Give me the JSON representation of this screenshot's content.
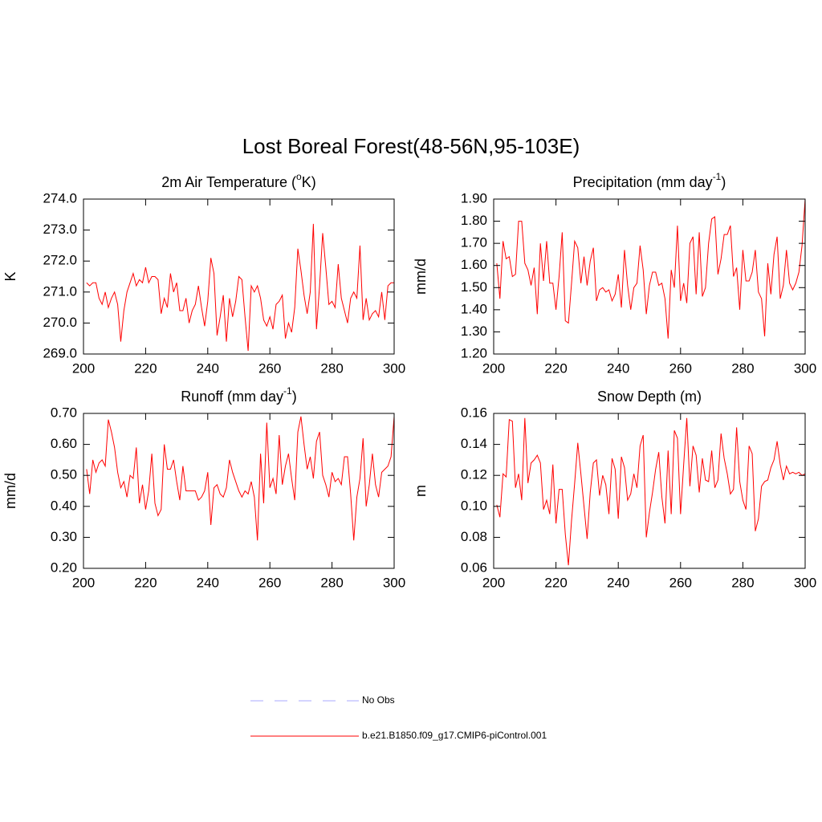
{
  "title": "Lost Boreal Forest(48-56N,95-103E)",
  "legend": [
    {
      "name": "No Obs",
      "color": "#aaaaff",
      "dash": true
    },
    {
      "name": "b.e21.B1850.f09_g17.CMIP6-piControl.001",
      "color": "#ff0000",
      "dash": false
    }
  ],
  "chart_data": [
    {
      "type": "line",
      "title": [
        "2m Air Temperature (",
        "o",
        "K)"
      ],
      "y_label": "K",
      "color": "#ff0000",
      "xlim": [
        200,
        300
      ],
      "xticks": [
        200,
        220,
        240,
        260,
        280,
        300
      ],
      "ylim": [
        269,
        274
      ],
      "yticks": [
        {
          "value": 269,
          "label": "269.0"
        },
        {
          "value": 270,
          "label": "270.0"
        },
        {
          "value": 271,
          "label": "271.0"
        },
        {
          "value": 272,
          "label": "272.0"
        },
        {
          "value": 273,
          "label": "273.0"
        },
        {
          "value": 274,
          "label": "274.0"
        }
      ],
      "x": [
        201,
        202,
        203,
        204,
        205,
        206,
        207,
        208,
        209,
        210,
        211,
        212,
        213,
        214,
        215,
        216,
        217,
        218,
        219,
        220,
        221,
        222,
        223,
        224,
        225,
        226,
        227,
        228,
        229,
        230,
        231,
        232,
        233,
        234,
        235,
        236,
        237,
        238,
        239,
        240,
        241,
        242,
        243,
        244,
        245,
        246,
        247,
        248,
        249,
        250,
        251,
        252,
        253,
        254,
        255,
        256,
        257,
        258,
        259,
        260,
        261,
        262,
        263,
        264,
        265,
        266,
        267,
        268,
        269,
        270,
        271,
        272,
        273,
        274,
        275,
        276,
        277,
        278,
        279,
        280,
        281,
        282,
        283,
        284,
        285,
        286,
        287,
        288,
        289,
        290,
        291,
        292,
        293,
        294,
        295,
        296,
        297,
        298,
        299,
        300
      ],
      "values": [
        271.3,
        271.2,
        271.3,
        271.3,
        270.8,
        270.6,
        271.0,
        270.5,
        270.8,
        271.0,
        270.6,
        269.4,
        270.4,
        271.0,
        271.3,
        271.6,
        271.2,
        271.4,
        271.3,
        271.8,
        271.3,
        271.5,
        271.5,
        271.4,
        270.3,
        270.8,
        270.5,
        271.6,
        271.0,
        271.3,
        270.4,
        270.4,
        270.8,
        270.0,
        270.4,
        270.6,
        271.2,
        270.5,
        269.9,
        270.7,
        272.1,
        271.6,
        269.6,
        270.2,
        270.9,
        269.4,
        270.8,
        270.2,
        270.7,
        271.5,
        271.4,
        270.2,
        269.1,
        271.2,
        271.0,
        271.2,
        270.8,
        270.1,
        269.9,
        270.2,
        269.8,
        270.6,
        270.7,
        270.9,
        269.5,
        270.0,
        269.7,
        270.5,
        272.4,
        271.7,
        270.9,
        270.3,
        271.0,
        273.2,
        269.8,
        271.2,
        272.9,
        271.8,
        270.6,
        270.7,
        270.5,
        271.9,
        270.8,
        270.4,
        270.0,
        270.8,
        271.0,
        270.8,
        272.5,
        270.1,
        270.8,
        270.1,
        270.3,
        270.4,
        270.2,
        271.0,
        270.1,
        271.2,
        271.3,
        271.3
      ]
    },
    {
      "type": "line",
      "title": [
        "Precipitation (mm day",
        "-1",
        ")"
      ],
      "y_label": "mm/d",
      "color": "#ff0000",
      "xlim": [
        200,
        300
      ],
      "xticks": [
        200,
        220,
        240,
        260,
        280,
        300
      ],
      "ylim": [
        1.2,
        1.9
      ],
      "yticks": [
        {
          "value": 1.2,
          "label": "1.20"
        },
        {
          "value": 1.3,
          "label": "1.30"
        },
        {
          "value": 1.4,
          "label": "1.40"
        },
        {
          "value": 1.5,
          "label": "1.50"
        },
        {
          "value": 1.6,
          "label": "1.60"
        },
        {
          "value": 1.7,
          "label": "1.70"
        },
        {
          "value": 1.8,
          "label": "1.80"
        },
        {
          "value": 1.9,
          "label": "1.90"
        }
      ],
      "x": [
        201,
        202,
        203,
        204,
        205,
        206,
        207,
        208,
        209,
        210,
        211,
        212,
        213,
        214,
        215,
        216,
        217,
        218,
        219,
        220,
        221,
        222,
        223,
        224,
        225,
        226,
        227,
        228,
        229,
        230,
        231,
        232,
        233,
        234,
        235,
        236,
        237,
        238,
        239,
        240,
        241,
        242,
        243,
        244,
        245,
        246,
        247,
        248,
        249,
        250,
        251,
        252,
        253,
        254,
        255,
        256,
        257,
        258,
        259,
        260,
        261,
        262,
        263,
        264,
        265,
        266,
        267,
        268,
        269,
        270,
        271,
        272,
        273,
        274,
        275,
        276,
        277,
        278,
        279,
        280,
        281,
        282,
        283,
        284,
        285,
        286,
        287,
        288,
        289,
        290,
        291,
        292,
        293,
        294,
        295,
        296,
        297,
        298,
        299,
        300
      ],
      "values": [
        1.61,
        1.45,
        1.71,
        1.63,
        1.64,
        1.55,
        1.56,
        1.8,
        1.8,
        1.61,
        1.58,
        1.51,
        1.59,
        1.38,
        1.7,
        1.53,
        1.71,
        1.52,
        1.52,
        1.4,
        1.55,
        1.75,
        1.35,
        1.34,
        1.52,
        1.71,
        1.68,
        1.52,
        1.64,
        1.51,
        1.62,
        1.68,
        1.44,
        1.49,
        1.5,
        1.48,
        1.49,
        1.44,
        1.47,
        1.56,
        1.41,
        1.67,
        1.51,
        1.4,
        1.5,
        1.52,
        1.69,
        1.58,
        1.38,
        1.51,
        1.57,
        1.57,
        1.51,
        1.52,
        1.45,
        1.27,
        1.58,
        1.5,
        1.78,
        1.44,
        1.52,
        1.43,
        1.7,
        1.73,
        1.47,
        1.75,
        1.46,
        1.5,
        1.7,
        1.81,
        1.82,
        1.56,
        1.63,
        1.74,
        1.74,
        1.78,
        1.55,
        1.59,
        1.4,
        1.67,
        1.53,
        1.53,
        1.57,
        1.67,
        1.48,
        1.45,
        1.28,
        1.61,
        1.47,
        1.65,
        1.73,
        1.45,
        1.51,
        1.67,
        1.52,
        1.49,
        1.52,
        1.57,
        1.69,
        1.9
      ]
    },
    {
      "type": "line",
      "title": [
        "Runoff (mm day",
        "-1",
        ")"
      ],
      "y_label": "mm/d",
      "color": "#ff0000",
      "xlim": [
        200,
        300
      ],
      "xticks": [
        200,
        220,
        240,
        260,
        280,
        300
      ],
      "ylim": [
        0.2,
        0.7
      ],
      "yticks": [
        {
          "value": 0.2,
          "label": "0.20"
        },
        {
          "value": 0.3,
          "label": "0.30"
        },
        {
          "value": 0.4,
          "label": "0.40"
        },
        {
          "value": 0.5,
          "label": "0.50"
        },
        {
          "value": 0.6,
          "label": "0.60"
        },
        {
          "value": 0.7,
          "label": "0.70"
        }
      ],
      "x": [
        201,
        202,
        203,
        204,
        205,
        206,
        207,
        208,
        209,
        210,
        211,
        212,
        213,
        214,
        215,
        216,
        217,
        218,
        219,
        220,
        221,
        222,
        223,
        224,
        225,
        226,
        227,
        228,
        229,
        230,
        231,
        232,
        233,
        234,
        235,
        236,
        237,
        238,
        239,
        240,
        241,
        242,
        243,
        244,
        245,
        246,
        247,
        248,
        249,
        250,
        251,
        252,
        253,
        254,
        255,
        256,
        257,
        258,
        259,
        260,
        261,
        262,
        263,
        264,
        265,
        266,
        267,
        268,
        269,
        270,
        271,
        272,
        273,
        274,
        275,
        276,
        277,
        278,
        279,
        280,
        281,
        282,
        283,
        284,
        285,
        286,
        287,
        288,
        289,
        290,
        291,
        292,
        293,
        294,
        295,
        296,
        297,
        298,
        299,
        300
      ],
      "values": [
        0.52,
        0.44,
        0.55,
        0.51,
        0.54,
        0.55,
        0.53,
        0.68,
        0.64,
        0.59,
        0.51,
        0.46,
        0.48,
        0.43,
        0.5,
        0.49,
        0.59,
        0.41,
        0.47,
        0.39,
        0.45,
        0.57,
        0.41,
        0.37,
        0.39,
        0.6,
        0.52,
        0.52,
        0.55,
        0.48,
        0.42,
        0.53,
        0.45,
        0.45,
        0.45,
        0.45,
        0.42,
        0.43,
        0.45,
        0.51,
        0.34,
        0.46,
        0.47,
        0.44,
        0.43,
        0.46,
        0.55,
        0.51,
        0.48,
        0.45,
        0.43,
        0.45,
        0.44,
        0.48,
        0.43,
        0.29,
        0.57,
        0.41,
        0.67,
        0.46,
        0.49,
        0.44,
        0.63,
        0.47,
        0.53,
        0.57,
        0.49,
        0.42,
        0.64,
        0.69,
        0.6,
        0.52,
        0.56,
        0.49,
        0.61,
        0.64,
        0.5,
        0.47,
        0.43,
        0.51,
        0.48,
        0.49,
        0.47,
        0.56,
        0.56,
        0.44,
        0.29,
        0.43,
        0.49,
        0.62,
        0.4,
        0.47,
        0.57,
        0.47,
        0.43,
        0.51,
        0.52,
        0.53,
        0.56,
        0.69
      ]
    },
    {
      "type": "line",
      "title": [
        "Snow Depth (m)"
      ],
      "y_label": "m",
      "color": "#ff0000",
      "xlim": [
        200,
        300
      ],
      "xticks": [
        200,
        220,
        240,
        260,
        280,
        300
      ],
      "ylim": [
        0.06,
        0.16
      ],
      "yticks": [
        0.06,
        0.08,
        {
          "value": 0.1,
          "label": "0.10"
        },
        0.12,
        0.14,
        0.16
      ],
      "x": [
        201,
        202,
        203,
        204,
        205,
        206,
        207,
        208,
        209,
        210,
        211,
        212,
        213,
        214,
        215,
        216,
        217,
        218,
        219,
        220,
        221,
        222,
        223,
        224,
        225,
        226,
        227,
        228,
        229,
        230,
        231,
        232,
        233,
        234,
        235,
        236,
        237,
        238,
        239,
        240,
        241,
        242,
        243,
        244,
        245,
        246,
        247,
        248,
        249,
        250,
        251,
        252,
        253,
        254,
        255,
        256,
        257,
        258,
        259,
        260,
        261,
        262,
        263,
        264,
        265,
        266,
        267,
        268,
        269,
        270,
        271,
        272,
        273,
        274,
        275,
        276,
        277,
        278,
        279,
        280,
        281,
        282,
        283,
        284,
        285,
        286,
        287,
        288,
        289,
        290,
        291,
        292,
        293,
        294,
        295,
        296,
        297,
        298,
        299,
        300
      ],
      "values": [
        0.101,
        0.093,
        0.121,
        0.119,
        0.156,
        0.155,
        0.112,
        0.121,
        0.104,
        0.157,
        0.115,
        0.128,
        0.13,
        0.133,
        0.128,
        0.098,
        0.104,
        0.095,
        0.127,
        0.089,
        0.111,
        0.111,
        0.082,
        0.062,
        0.091,
        0.115,
        0.141,
        0.121,
        0.1,
        0.079,
        0.109,
        0.128,
        0.13,
        0.107,
        0.12,
        0.114,
        0.095,
        0.131,
        0.124,
        0.092,
        0.132,
        0.125,
        0.104,
        0.108,
        0.121,
        0.112,
        0.139,
        0.146,
        0.08,
        0.096,
        0.109,
        0.124,
        0.135,
        0.106,
        0.089,
        0.136,
        0.095,
        0.149,
        0.144,
        0.095,
        0.127,
        0.157,
        0.113,
        0.139,
        0.133,
        0.109,
        0.131,
        0.117,
        0.116,
        0.136,
        0.112,
        0.117,
        0.147,
        0.131,
        0.121,
        0.108,
        0.111,
        0.151,
        0.116,
        0.104,
        0.098,
        0.139,
        0.134,
        0.084,
        0.092,
        0.113,
        0.116,
        0.117,
        0.125,
        0.13,
        0.142,
        0.127,
        0.117,
        0.126,
        0.121,
        0.122,
        0.121,
        0.122,
        0.12,
        0.121
      ]
    }
  ]
}
